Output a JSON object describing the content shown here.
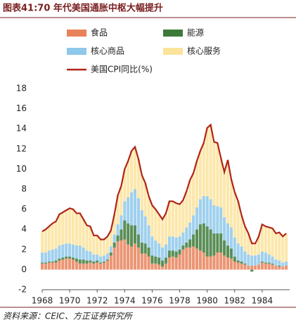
{
  "chart_data": {
    "type": "bar",
    "title": "图表41:70 年代美国通胀中枢大幅提升",
    "source": "资料来源：CEIC、方正证券研究所",
    "x": [
      1968,
      1968.25,
      1968.5,
      1968.75,
      1969,
      1969.25,
      1969.5,
      1969.75,
      1970,
      1970.25,
      1970.5,
      1970.75,
      1971,
      1971.25,
      1971.5,
      1971.75,
      1972,
      1972.25,
      1972.5,
      1972.75,
      1973,
      1973.25,
      1973.5,
      1973.75,
      1974,
      1974.25,
      1974.5,
      1974.75,
      1975,
      1975.25,
      1975.5,
      1975.75,
      1976,
      1976.25,
      1976.5,
      1976.75,
      1977,
      1977.25,
      1977.5,
      1977.75,
      1978,
      1978.25,
      1978.5,
      1978.75,
      1979,
      1979.25,
      1979.5,
      1979.75,
      1980,
      1980.25,
      1980.5,
      1980.75,
      1981,
      1981.25,
      1981.5,
      1981.75,
      1982,
      1982.25,
      1982.5,
      1982.75,
      1983,
      1983.25,
      1983.5,
      1983.75,
      1984,
      1984.25,
      1984.5,
      1984.75,
      1985,
      1985.25,
      1985.5,
      1985.75
    ],
    "series": [
      {
        "name": "食品",
        "type": "bar",
        "color": "#e8825a",
        "values": [
          0.6,
          0.6,
          0.7,
          0.7,
          0.7,
          0.9,
          1.0,
          1.1,
          1.1,
          1.0,
          0.8,
          0.6,
          0.6,
          0.6,
          0.7,
          0.6,
          0.7,
          0.6,
          0.7,
          0.9,
          1.4,
          2.2,
          2.8,
          2.9,
          3.0,
          2.5,
          2.3,
          2.6,
          2.2,
          1.6,
          1.6,
          1.3,
          0.6,
          0.6,
          0.5,
          0.3,
          0.6,
          1.2,
          1.3,
          1.2,
          1.5,
          2.0,
          2.2,
          2.2,
          2.3,
          2.1,
          1.9,
          1.7,
          1.3,
          1.3,
          1.4,
          1.7,
          1.7,
          1.4,
          1.2,
          1.1,
          0.8,
          0.7,
          0.6,
          0.5,
          0.4,
          0.4,
          0.4,
          0.5,
          0.7,
          0.6,
          0.6,
          0.5,
          0.4,
          0.3,
          0.3,
          0.4
        ]
      },
      {
        "name": "能源",
        "type": "bar",
        "color": "#3d7a3a",
        "values": [
          0.1,
          0.1,
          0.1,
          0.1,
          0.2,
          0.2,
          0.2,
          0.2,
          0.2,
          0.2,
          0.3,
          0.4,
          0.4,
          0.3,
          0.2,
          0.2,
          0.2,
          0.1,
          0.1,
          0.1,
          0.3,
          0.5,
          0.6,
          1.1,
          1.9,
          2.1,
          2.1,
          1.8,
          1.3,
          1.1,
          1.0,
          0.9,
          0.8,
          0.7,
          0.7,
          0.6,
          0.6,
          0.7,
          0.6,
          0.6,
          0.5,
          0.4,
          0.5,
          0.8,
          1.2,
          1.9,
          2.6,
          2.9,
          3.0,
          2.7,
          2.2,
          1.9,
          1.9,
          1.5,
          1.2,
          1.0,
          0.5,
          0.2,
          0.2,
          0.1,
          0.0,
          -0.2,
          0.0,
          0.0,
          0.1,
          0.1,
          0.1,
          0.1,
          0.0,
          0.1,
          0.0,
          0.0
        ]
      },
      {
        "name": "核心商品",
        "type": "bar",
        "color": "#8ec8ea",
        "values": [
          1.0,
          1.0,
          1.1,
          1.2,
          1.2,
          1.3,
          1.3,
          1.3,
          1.3,
          1.3,
          1.3,
          1.4,
          1.2,
          1.0,
          0.9,
          0.7,
          0.6,
          0.6,
          0.6,
          0.6,
          0.6,
          0.8,
          1.1,
          1.4,
          1.9,
          2.6,
          3.3,
          3.6,
          3.6,
          3.2,
          2.7,
          2.2,
          1.9,
          1.6,
          1.4,
          1.3,
          1.3,
          1.4,
          1.4,
          1.4,
          1.3,
          1.3,
          1.5,
          1.7,
          1.9,
          2.2,
          2.5,
          2.7,
          3.0,
          3.0,
          2.8,
          2.7,
          2.6,
          2.3,
          2.2,
          2.1,
          1.9,
          1.7,
          1.5,
          1.2,
          1.1,
          1.0,
          1.0,
          1.0,
          1.0,
          1.0,
          0.8,
          0.7,
          0.6,
          0.5,
          0.4,
          0.4
        ]
      },
      {
        "name": "核心服务",
        "type": "bar",
        "color": "#fbe39c",
        "values": [
          2.1,
          2.3,
          2.4,
          2.6,
          2.7,
          3.1,
          3.2,
          3.3,
          3.5,
          3.5,
          3.2,
          3.2,
          2.8,
          2.5,
          2.5,
          1.9,
          1.9,
          1.7,
          1.6,
          1.7,
          1.6,
          2.0,
          2.9,
          2.9,
          3.2,
          3.6,
          4.1,
          4.2,
          3.9,
          3.5,
          3.3,
          2.9,
          3.1,
          3.1,
          2.9,
          2.8,
          3.1,
          3.5,
          3.5,
          3.4,
          3.2,
          3.2,
          3.6,
          4.2,
          4.2,
          4.6,
          4.8,
          5.3,
          6.8,
          7.4,
          6.3,
          6.3,
          4.9,
          4.5,
          6.3,
          4.8,
          4.5,
          4.2,
          3.1,
          2.5,
          2.1,
          1.4,
          1.2,
          1.8,
          2.7,
          2.6,
          2.7,
          2.8,
          2.6,
          2.8,
          2.6,
          2.8
        ]
      },
      {
        "name": "美国CPI同比(%)",
        "type": "line",
        "color": "#b02418",
        "values": [
          3.8,
          4.0,
          4.3,
          4.6,
          4.8,
          5.5,
          5.7,
          5.9,
          6.1,
          6.0,
          5.6,
          5.6,
          5.0,
          4.4,
          4.3,
          3.4,
          3.4,
          3.0,
          3.0,
          3.3,
          3.9,
          5.5,
          7.4,
          8.3,
          10.0,
          10.8,
          11.8,
          12.2,
          11.0,
          9.4,
          8.6,
          7.3,
          6.4,
          6.0,
          5.5,
          5.0,
          5.6,
          6.8,
          6.8,
          6.6,
          6.5,
          6.9,
          7.8,
          8.9,
          9.6,
          10.8,
          11.8,
          12.6,
          14.1,
          14.4,
          12.7,
          12.6,
          11.1,
          9.7,
          10.9,
          9.0,
          7.7,
          6.8,
          5.4,
          4.3,
          3.6,
          2.6,
          2.6,
          3.3,
          4.5,
          4.3,
          4.2,
          4.1,
          3.6,
          3.7,
          3.3,
          3.6
        ]
      }
    ],
    "xlim": [
      1968,
      1986
    ],
    "xticks": [
      1968,
      1970,
      1972,
      1974,
      1976,
      1978,
      1980,
      1982,
      1984
    ],
    "ylim": [
      -2,
      18
    ],
    "yticks": [
      -2,
      0,
      2,
      4,
      6,
      8,
      10,
      12,
      14,
      16,
      18
    ]
  }
}
